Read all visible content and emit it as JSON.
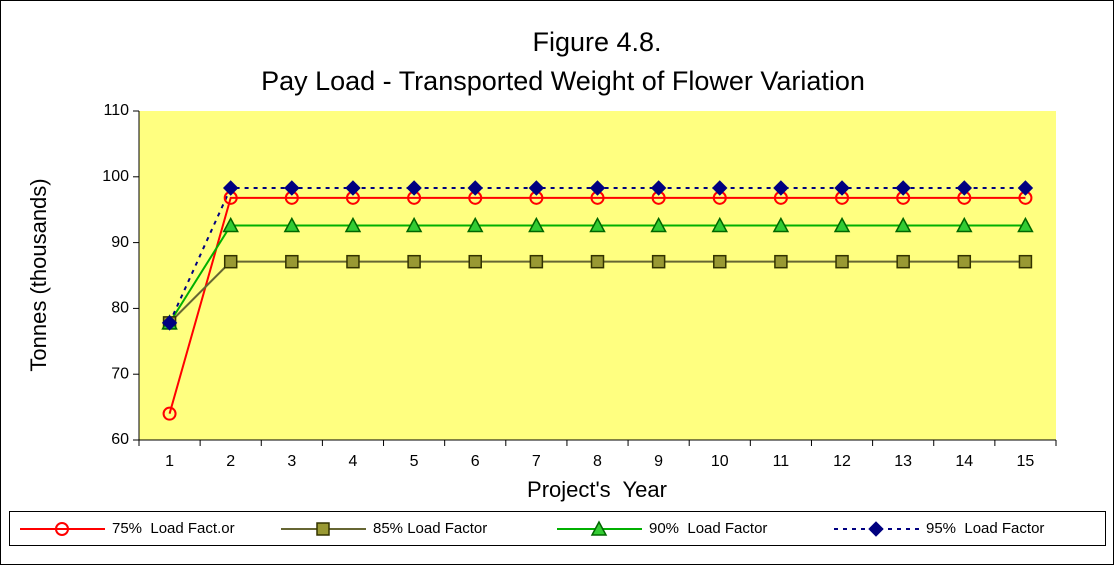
{
  "chart_data": {
    "type": "line",
    "title": "Figure 4.8.",
    "subtitle": "Pay Load - Transported Weight of Flower Variation",
    "y_label": "Tonnes (thousands)",
    "x_label": "Project's  Year",
    "categories": [
      "1",
      "2",
      "3",
      "4",
      "5",
      "6",
      "7",
      "8",
      "9",
      "10",
      "11",
      "12",
      "13",
      "14",
      "15"
    ],
    "ylim": [
      60,
      110
    ],
    "yticks": [
      60,
      70,
      80,
      90,
      100,
      110
    ],
    "plot_background": "#ffff80",
    "legend": "bottom",
    "series": [
      {
        "name": "75%  Load Fact.or",
        "color": "#ff0000",
        "marker": "circle",
        "line": "solid",
        "values": [
          64,
          96.8,
          96.8,
          96.8,
          96.8,
          96.8,
          96.8,
          96.8,
          96.8,
          96.8,
          96.8,
          96.8,
          96.8,
          96.8,
          96.8
        ]
      },
      {
        "name": "85% Load Factor",
        "color": "#666633",
        "marker": "square",
        "line": "solid",
        "values": [
          77.8,
          87.1,
          87.1,
          87.1,
          87.1,
          87.1,
          87.1,
          87.1,
          87.1,
          87.1,
          87.1,
          87.1,
          87.1,
          87.1,
          87.1
        ]
      },
      {
        "name": "90%  Load Factor",
        "color": "#00b000",
        "marker": "triangle",
        "line": "solid",
        "values": [
          77.8,
          92.6,
          92.6,
          92.6,
          92.6,
          92.6,
          92.6,
          92.6,
          92.6,
          92.6,
          92.6,
          92.6,
          92.6,
          92.6,
          92.6
        ]
      },
      {
        "name": "95%  Load Factor",
        "color": "#000080",
        "marker": "diamond",
        "line": "dotted",
        "values": [
          77.8,
          98.3,
          98.3,
          98.3,
          98.3,
          98.3,
          98.3,
          98.3,
          98.3,
          98.3,
          98.3,
          98.3,
          98.3,
          98.3,
          98.3
        ]
      }
    ]
  }
}
